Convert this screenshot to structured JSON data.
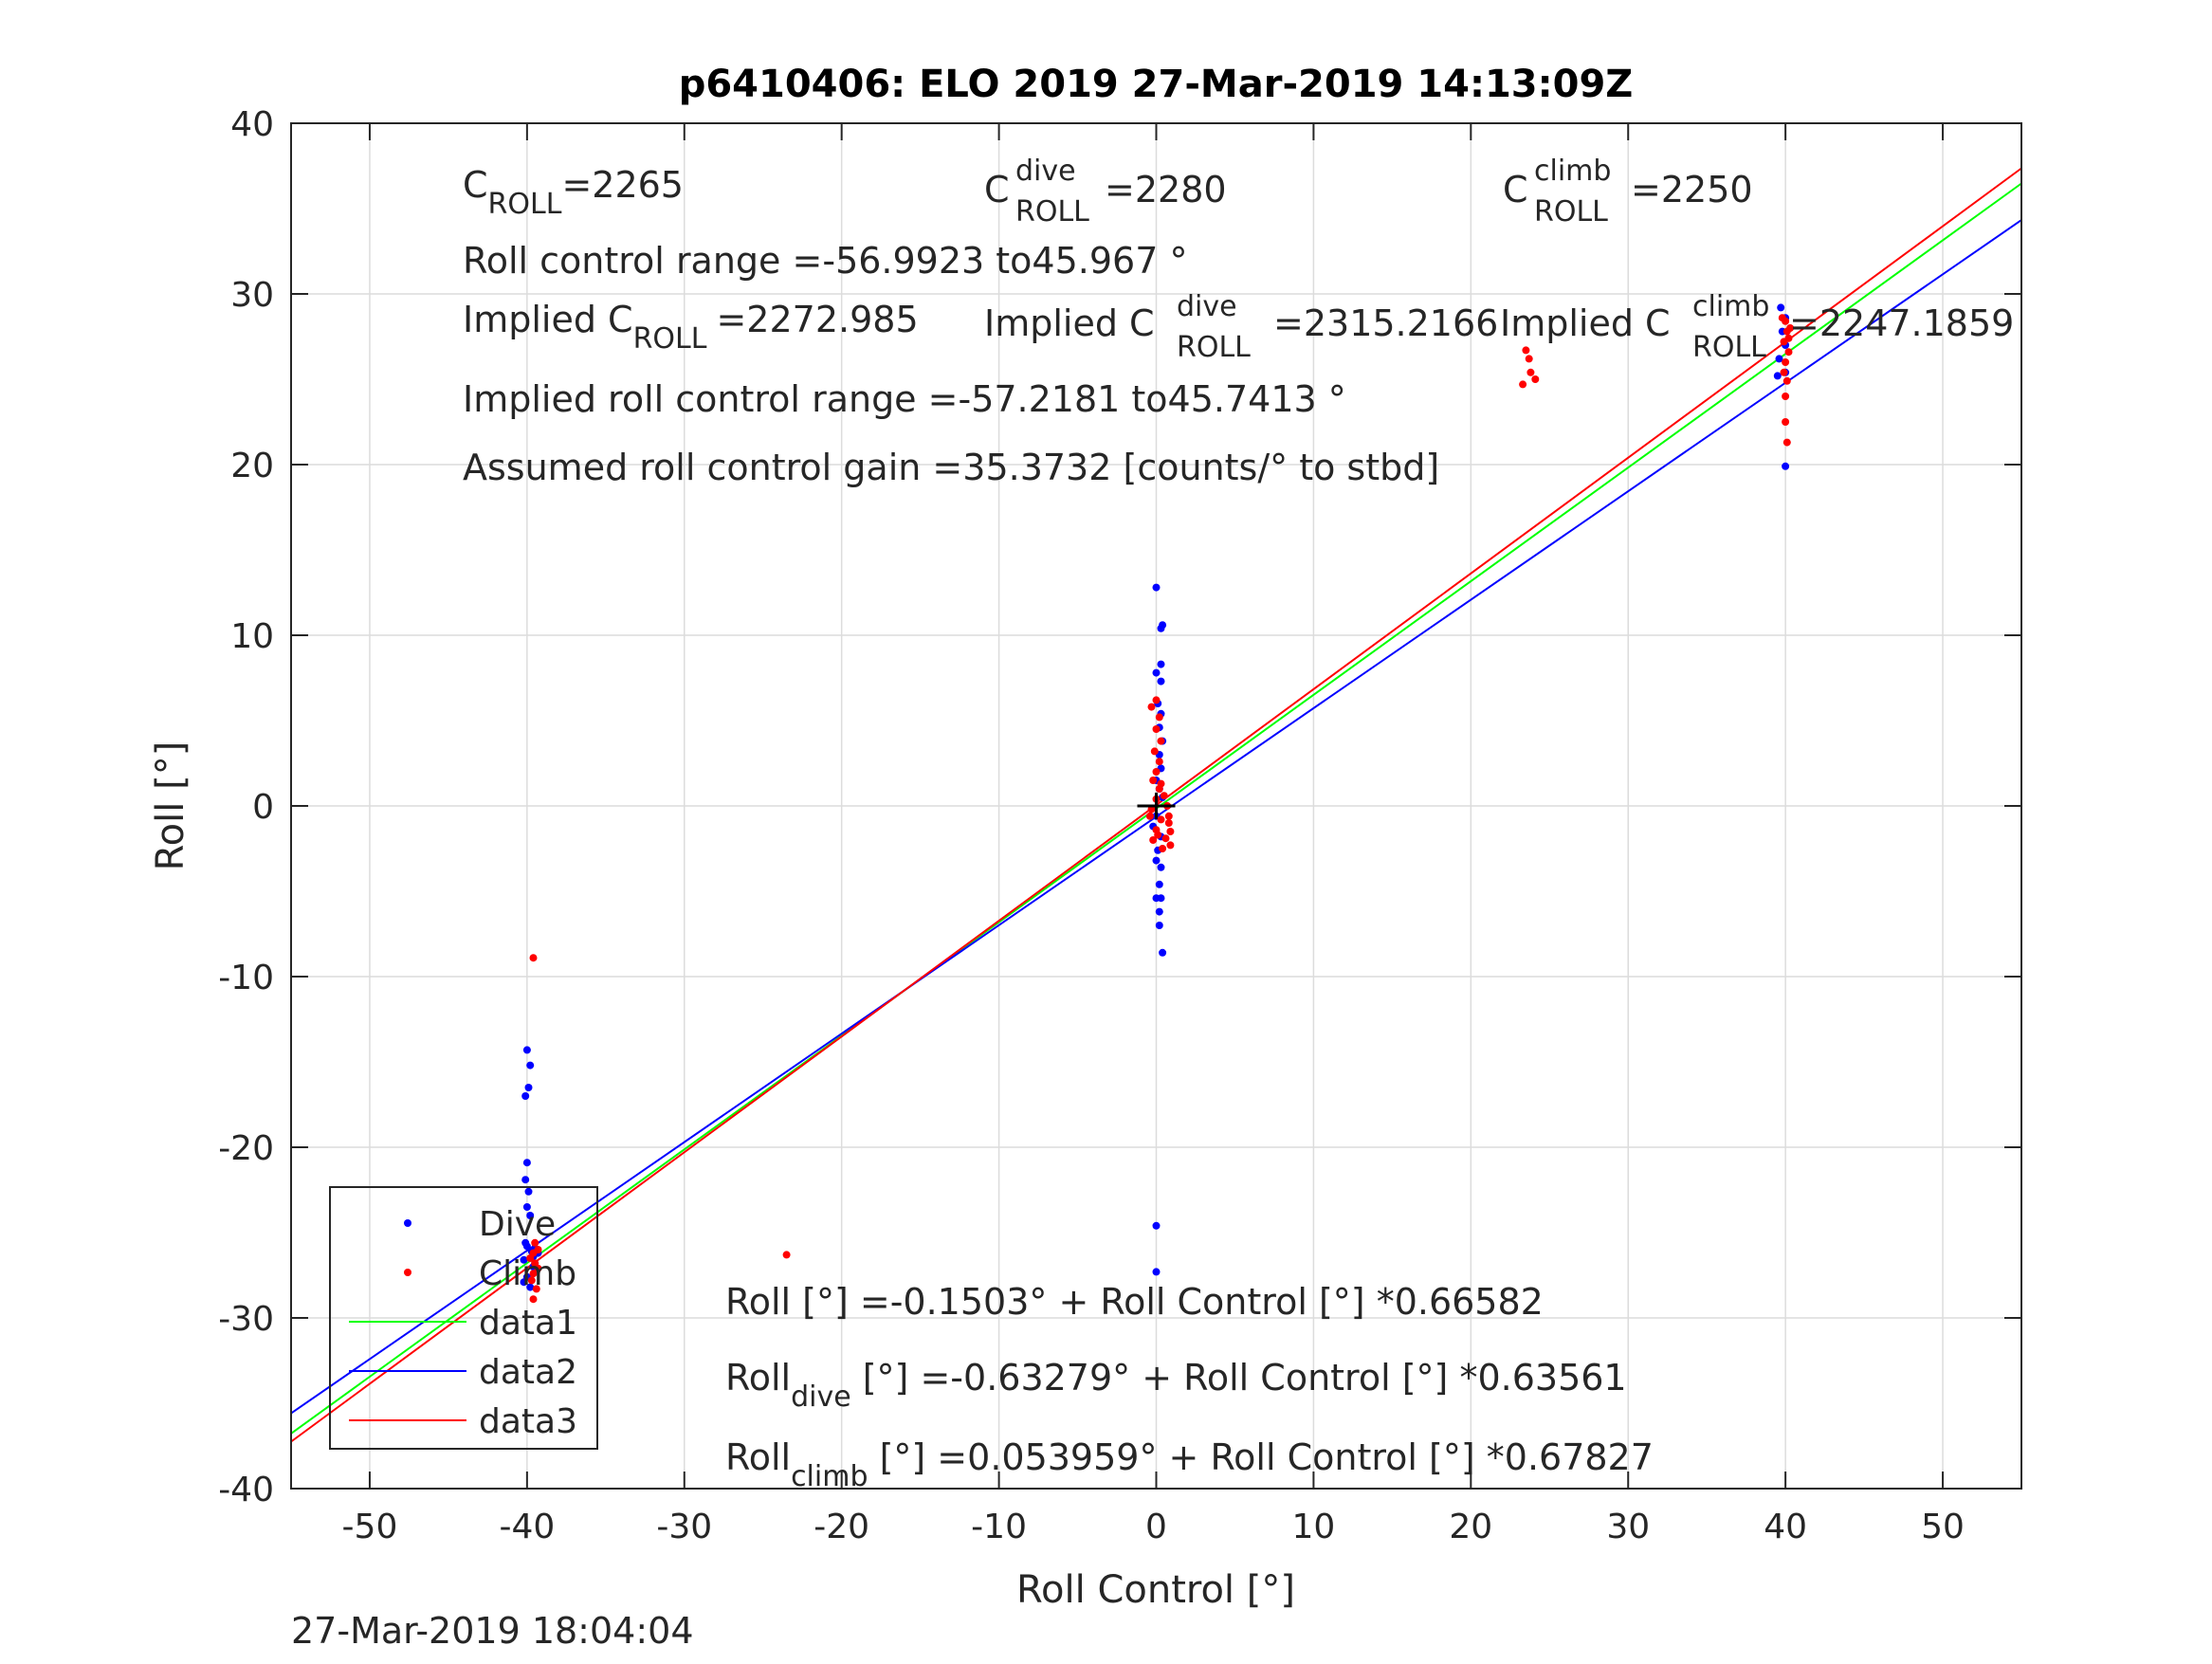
{
  "chart_data": {
    "type": "scatter",
    "title": "p6410406: ELO 2019 27-Mar-2019 14:13:09Z",
    "xlabel": "Roll Control [°]",
    "ylabel": "Roll [°]",
    "xlim": [
      -55,
      55
    ],
    "ylim": [
      -40,
      40
    ],
    "xticks": [
      -50,
      -40,
      -30,
      -20,
      -10,
      0,
      10,
      20,
      30,
      40,
      50
    ],
    "yticks": [
      -40,
      -30,
      -20,
      -10,
      0,
      10,
      20,
      30,
      40
    ],
    "grid": true,
    "legend_position": "bottom-left",
    "timestamp": "27-Mar-2019 18:04:04",
    "series": [
      {
        "name": "Dive",
        "kind": "points",
        "color": "#0000ff",
        "points": [
          [
            -40.0,
            -14.3
          ],
          [
            -39.8,
            -15.2
          ],
          [
            -39.9,
            -16.5
          ],
          [
            -40.1,
            -17.0
          ],
          [
            -40.0,
            -20.9
          ],
          [
            -40.1,
            -21.9
          ],
          [
            -39.9,
            -22.6
          ],
          [
            -40.0,
            -23.5
          ],
          [
            -39.8,
            -24.0
          ],
          [
            -40.0,
            -25.8
          ],
          [
            -39.7,
            -26.1
          ],
          [
            -40.2,
            -26.6
          ],
          [
            -39.6,
            -27.0
          ],
          [
            -39.5,
            -25.9
          ],
          [
            -40.0,
            -27.6
          ],
          [
            -39.8,
            -28.2
          ],
          [
            -39.6,
            -26.4
          ],
          [
            -40.1,
            -25.6
          ],
          [
            -40.2,
            -27.9
          ],
          [
            -39.5,
            -26.8
          ],
          [
            -39.3,
            -26.2
          ],
          [
            0.0,
            12.8
          ],
          [
            0.4,
            10.6
          ],
          [
            0.3,
            10.4
          ],
          [
            0.3,
            8.3
          ],
          [
            0.0,
            7.8
          ],
          [
            0.3,
            7.3
          ],
          [
            0.1,
            6.0
          ],
          [
            0.3,
            5.4
          ],
          [
            0.2,
            4.6
          ],
          [
            0.4,
            3.8
          ],
          [
            0.2,
            3.0
          ],
          [
            0.3,
            2.2
          ],
          [
            0.0,
            1.5
          ],
          [
            0.2,
            1.0
          ],
          [
            0.4,
            0.5
          ],
          [
            0.0,
            -0.6
          ],
          [
            -0.2,
            -1.2
          ],
          [
            0.3,
            -1.8
          ],
          [
            0.1,
            -2.6
          ],
          [
            0.0,
            -3.2
          ],
          [
            0.3,
            -3.6
          ],
          [
            0.2,
            -4.6
          ],
          [
            0.0,
            -5.4
          ],
          [
            0.3,
            -5.4
          ],
          [
            0.2,
            -6.2
          ],
          [
            0.2,
            -7.0
          ],
          [
            0.4,
            -8.6
          ],
          [
            0.0,
            -24.6
          ],
          [
            0.0,
            -27.3
          ],
          [
            39.7,
            29.2
          ],
          [
            40.0,
            28.6
          ],
          [
            39.8,
            27.8
          ],
          [
            40.0,
            27.0
          ],
          [
            39.6,
            26.2
          ],
          [
            40.0,
            25.4
          ],
          [
            39.5,
            25.2
          ],
          [
            40.0,
            19.9
          ]
        ]
      },
      {
        "name": "Climb",
        "kind": "points",
        "color": "#ff0000",
        "points": [
          [
            -39.6,
            -8.9
          ],
          [
            -39.5,
            -25.6
          ],
          [
            -39.6,
            -26.2
          ],
          [
            -39.5,
            -26.8
          ],
          [
            -39.6,
            -27.4
          ],
          [
            -39.7,
            -27.8
          ],
          [
            -39.4,
            -28.3
          ],
          [
            -39.6,
            -28.9
          ],
          [
            -39.3,
            -27.1
          ],
          [
            -39.8,
            -26.5
          ],
          [
            -39.3,
            -26.0
          ],
          [
            -23.5,
            -26.3
          ],
          [
            0.0,
            6.2
          ],
          [
            -0.3,
            5.8
          ],
          [
            0.2,
            5.2
          ],
          [
            0.0,
            4.5
          ],
          [
            0.3,
            3.8
          ],
          [
            -0.1,
            3.2
          ],
          [
            0.2,
            2.6
          ],
          [
            0.0,
            2.0
          ],
          [
            -0.2,
            1.5
          ],
          [
            0.2,
            1.0
          ],
          [
            0.0,
            0.4
          ],
          [
            -0.3,
            -0.2
          ],
          [
            0.3,
            -0.8
          ],
          [
            0.0,
            -1.4
          ],
          [
            0.6,
            -1.9
          ],
          [
            0.9,
            -2.3
          ],
          [
            0.8,
            -1.0
          ],
          [
            0.7,
            0.0
          ],
          [
            0.8,
            -0.6
          ],
          [
            -0.2,
            -2.0
          ],
          [
            0.4,
            -2.5
          ],
          [
            0.1,
            -1.7
          ],
          [
            -0.4,
            -0.6
          ],
          [
            0.5,
            0.6
          ],
          [
            0.9,
            -1.5
          ],
          [
            0.3,
            1.3
          ],
          [
            23.5,
            26.7
          ],
          [
            23.7,
            26.2
          ],
          [
            23.8,
            25.4
          ],
          [
            23.3,
            24.7
          ],
          [
            24.1,
            25.0
          ],
          [
            40.0,
            28.4
          ],
          [
            40.1,
            27.8
          ],
          [
            39.9,
            27.2
          ],
          [
            40.2,
            26.6
          ],
          [
            40.0,
            26.0
          ],
          [
            39.9,
            25.4
          ],
          [
            40.1,
            24.9
          ],
          [
            40.0,
            24.0
          ],
          [
            40.0,
            22.5
          ],
          [
            40.1,
            21.3
          ],
          [
            40.3,
            28.0
          ],
          [
            40.2,
            27.4
          ],
          [
            39.8,
            28.6
          ]
        ]
      },
      {
        "name": "data1",
        "kind": "line",
        "color": "#00ff00",
        "points": [
          [
            -55,
            -36.77
          ],
          [
            55,
            36.47
          ]
        ]
      },
      {
        "name": "data2",
        "kind": "line",
        "color": "#0000ff",
        "points": [
          [
            -55,
            -35.59
          ],
          [
            55,
            34.33
          ]
        ]
      },
      {
        "name": "data3",
        "kind": "line",
        "color": "#ff0000",
        "points": [
          [
            -55,
            -37.25
          ],
          [
            55,
            37.36
          ]
        ]
      }
    ],
    "annotations": {
      "c_roll": "=2265",
      "c_roll_dive": "=2280",
      "c_roll_climb": "=2250",
      "roll_control_range": "Roll control range =-56.9923 to45.967 °",
      "implied_c_roll": "=2272.985",
      "implied_c_roll_dive": "=2315.2166",
      "implied_c_roll_climb": "=2247.1859",
      "implied_roll_control_range": "Implied roll control range =-57.2181 to45.7413 °",
      "assumed_gain": "Assumed roll control gain =35.3732 [counts/° to stbd]",
      "fit_all": "Roll [°] =-0.1503° + Roll Control [°] *0.66582",
      "fit_dive_suffix": " [°] =-0.63279° + Roll Control [°] *0.63561",
      "fit_climb_suffix": " [°] =0.053959° + Roll Control [°] *0.67827"
    },
    "labels": {
      "c": "C",
      "roll_sub": "ROLL",
      "dive_sup": "dive",
      "climb_sup": "climb",
      "implied": "Implied C",
      "roll_word": "Roll",
      "dive_sub": "dive",
      "climb_sub": "climb"
    }
  }
}
